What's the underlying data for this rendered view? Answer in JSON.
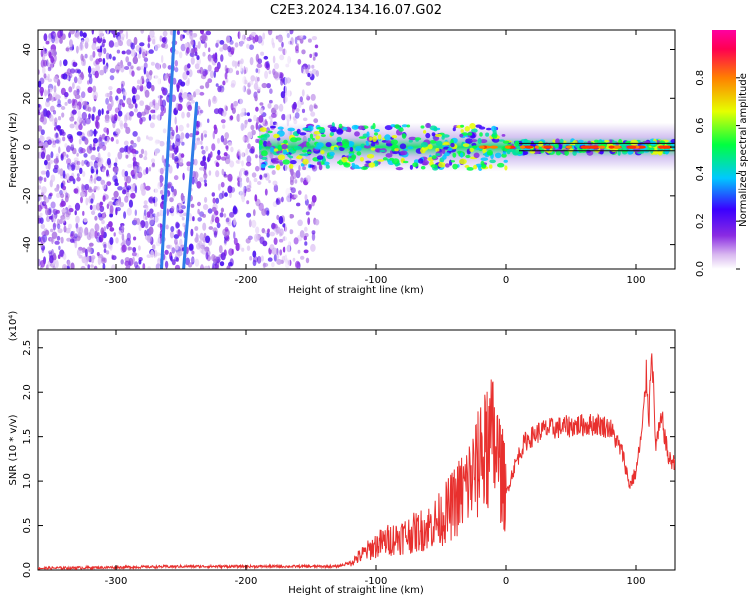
{
  "title": "C2E3.2024.134.16.07.G02",
  "colors": {
    "snr_line": "#e8302e",
    "trace": "#2d7de8",
    "residual": "#111111",
    "colorbar": [
      "#ffffff",
      "#d9b8f0",
      "#8a2be2",
      "#3a00ff",
      "#00c8ff",
      "#00ff40",
      "#e6ff00",
      "#ff8000",
      "#ff0050",
      "#ff00a0"
    ]
  },
  "chart_data": [
    {
      "type": "heatmap",
      "title": "C2E3.2024.134.16.07.G02",
      "xlabel": "Height of straight line (km)",
      "ylabel": "Frequency (Hz)",
      "xlim": [
        -360,
        130
      ],
      "ylim": [
        -50,
        48
      ],
      "x_ticks": [
        -300,
        -200,
        -100,
        0,
        100
      ],
      "y_ticks": [
        -40,
        -20,
        0,
        20,
        40
      ],
      "colorbar": {
        "label": "Normalized spectral amplitude",
        "range": [
          0.0,
          1.0
        ],
        "ticks": [
          "0.0",
          "0.2",
          "0.4",
          "0.6",
          "0.8"
        ]
      },
      "description_of_field": {
        "noise_region_km": [
          -360,
          -145
        ],
        "main_tone_band_km": [
          -190,
          130
        ],
        "tone_center_hz": 0,
        "extra_traces": [
          {
            "x": [
              -265,
              -255
            ],
            "y": [
              -50,
              48
            ]
          },
          {
            "x": [
              -248,
              -238
            ],
            "y": [
              -50,
              18
            ]
          }
        ]
      }
    },
    {
      "type": "line",
      "xlabel": "Height of straight line (km)",
      "ylabel": "SNR (10 * v/v)",
      "y_multiplier": "(x10⁴)",
      "xlim": [
        -360,
        130
      ],
      "ylim": [
        0,
        2.7
      ],
      "x_ticks": [
        -300,
        -200,
        -100,
        0,
        100
      ],
      "y_ticks": [
        "0.0",
        "0.5",
        "1.0",
        "1.5",
        "2.0",
        "2.5"
      ],
      "series": [
        {
          "x": [
            -360,
            -300,
            -250,
            -200,
            -150,
            -130,
            -120,
            -110,
            -100,
            -90,
            -80,
            -70,
            -60,
            -50,
            -40,
            -30,
            -20,
            -10,
            -5,
            0,
            5,
            10,
            15,
            20,
            25,
            30,
            40,
            50,
            60,
            70,
            80,
            90,
            95,
            100,
            105,
            108,
            110,
            112,
            115,
            120,
            125,
            130
          ],
          "y": [
            0.02,
            0.03,
            0.04,
            0.04,
            0.04,
            0.04,
            0.08,
            0.18,
            0.28,
            0.34,
            0.38,
            0.42,
            0.48,
            0.58,
            0.75,
            0.95,
            1.2,
            1.45,
            1.2,
            0.85,
            1.1,
            1.3,
            1.45,
            1.5,
            1.55,
            1.58,
            1.6,
            1.62,
            1.63,
            1.64,
            1.6,
            1.3,
            0.95,
            1.1,
            1.6,
            2.2,
            1.7,
            2.6,
            1.4,
            1.7,
            1.25,
            1.2
          ]
        }
      ]
    }
  ]
}
